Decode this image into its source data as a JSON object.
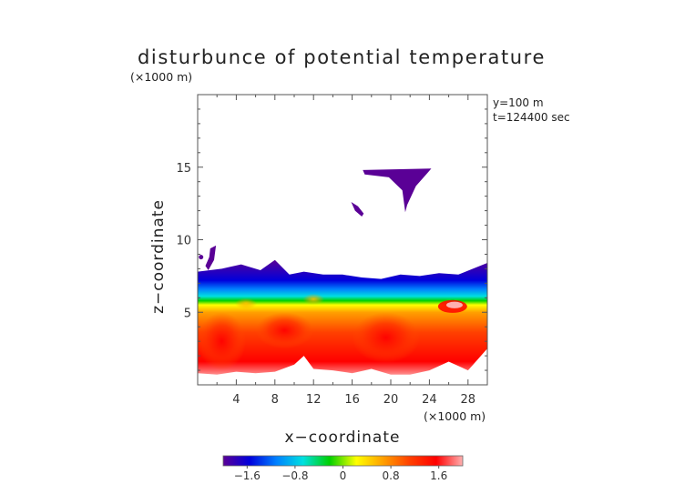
{
  "chart_data": {
    "type": "heatmap",
    "title": "disturbunce of potential temperature",
    "xlabel": "x−coordinate",
    "ylabel": "z−coordinate",
    "x_unit": "(×1000 m)",
    "y_unit": "(×1000 m)",
    "annotations": [
      "y=100 m",
      "t=124400 sec"
    ],
    "xlim": [
      0,
      30
    ],
    "ylim": [
      0,
      20
    ],
    "xticks": [
      4,
      8,
      12,
      16,
      20,
      24,
      28
    ],
    "xtick_labels": [
      "4",
      "8",
      "12",
      "16",
      "20",
      "24",
      "28"
    ],
    "yticks": [
      5,
      10,
      15
    ],
    "ytick_labels": [
      "5",
      "10",
      "15"
    ],
    "colorbar": {
      "range": [
        -2,
        2
      ],
      "ticks": [
        -1.6,
        -0.8,
        0,
        0.8,
        1.6
      ],
      "tick_labels": [
        "−1.6",
        "−0.8",
        "0",
        "0.8",
        "1.6"
      ],
      "colormap": [
        "#5a0096",
        "#0000dc",
        "#0080ff",
        "#00e0e0",
        "#00d000",
        "#ffff00",
        "#ffa000",
        "#ff4000",
        "#ff0000",
        "#ffb0b0"
      ]
    },
    "layers": {
      "upper_layer_top_profile_km": [
        [
          0,
          7.8
        ],
        [
          2.5,
          8.0
        ],
        [
          4.5,
          8.3
        ],
        [
          6.5,
          7.9
        ],
        [
          8,
          8.6
        ],
        [
          9.5,
          7.6
        ],
        [
          11,
          7.8
        ],
        [
          13,
          7.6
        ],
        [
          15,
          7.6
        ],
        [
          17,
          7.4
        ],
        [
          19,
          7.3
        ],
        [
          21,
          7.6
        ],
        [
          23,
          7.5
        ],
        [
          25,
          7.7
        ],
        [
          27,
          7.6
        ],
        [
          28.5,
          8.0
        ],
        [
          30,
          8.4
        ]
      ],
      "cold_to_warm_transition_km": 5.3,
      "warm_core_regions": [
        {
          "x": [
            0,
            5
          ],
          "z": [
            1,
            5
          ],
          "value": 1.8
        },
        {
          "x": [
            6,
            12
          ],
          "z": [
            2.5,
            5
          ],
          "value": 1.6
        },
        {
          "x": [
            16,
            23
          ],
          "z": [
            1.5,
            5
          ],
          "value": 1.6
        }
      ],
      "cold_patches": [
        {
          "x": [
            17,
            24
          ],
          "z": [
            12,
            15
          ],
          "value": -1.8
        },
        {
          "x": [
            0.5,
            2
          ],
          "z": [
            8,
            9.6
          ],
          "value": -1.8
        }
      ]
    }
  }
}
